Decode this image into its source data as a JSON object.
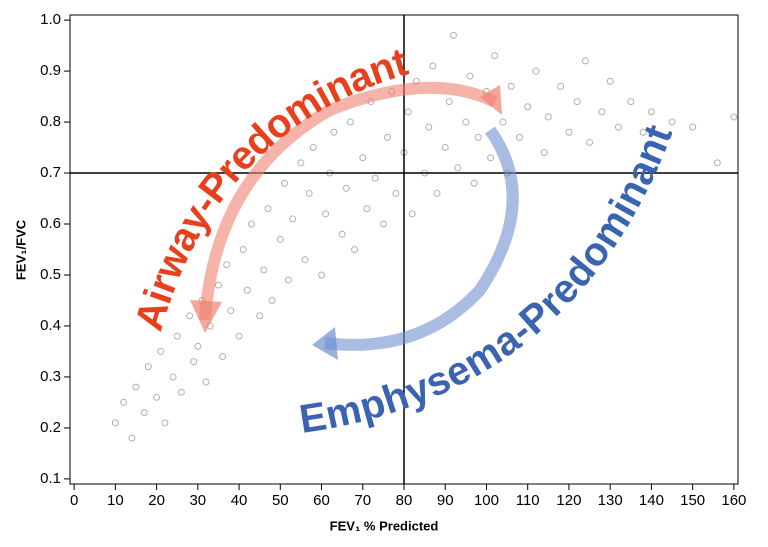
{
  "chart_data": {
    "type": "scatter",
    "xlabel": "FEV₁ % Predicted",
    "ylabel": "FEV₁/FVC",
    "color": "#b0b0b0",
    "xlim": [
      -1,
      161
    ],
    "ylim": [
      0.09,
      1.01
    ],
    "xticks": [
      0,
      10,
      20,
      30,
      40,
      50,
      60,
      70,
      80,
      90,
      100,
      110,
      120,
      130,
      140,
      150,
      160
    ],
    "yticks": [
      0.1,
      0.2,
      0.3,
      0.4,
      0.5,
      0.6,
      0.7,
      0.8,
      0.9,
      {
        "value": 1,
        "label": "1.0"
      }
    ],
    "vline": 80,
    "hline": 0.7,
    "annotations": [
      {
        "text": "Airway-Predominant",
        "color": "#e8401c"
      },
      {
        "text": "Emphysema-Predominant",
        "color": "#3a63b0"
      }
    ],
    "x": [
      10,
      12,
      14,
      15,
      17,
      18,
      20,
      21,
      22,
      24,
      25,
      26,
      28,
      29,
      30,
      31,
      32,
      33,
      35,
      36,
      37,
      38,
      40,
      41,
      42,
      43,
      45,
      46,
      47,
      48,
      50,
      51,
      52,
      53,
      55,
      56,
      57,
      58,
      60,
      61,
      62,
      63,
      65,
      66,
      67,
      68,
      70,
      71,
      72,
      73,
      75,
      76,
      77,
      78,
      80,
      81,
      82,
      83,
      85,
      86,
      87,
      88,
      90,
      91,
      92,
      93,
      95,
      96,
      97,
      98,
      100,
      101,
      102,
      104,
      105,
      106,
      108,
      110,
      112,
      114,
      115,
      118,
      120,
      122,
      124,
      125,
      128,
      130,
      132,
      135,
      138,
      140,
      145,
      150,
      156,
      160
    ],
    "y": [
      0.21,
      0.25,
      0.18,
      0.28,
      0.23,
      0.32,
      0.26,
      0.35,
      0.21,
      0.3,
      0.38,
      0.27,
      0.42,
      0.33,
      0.36,
      0.45,
      0.29,
      0.4,
      0.48,
      0.34,
      0.52,
      0.43,
      0.38,
      0.55,
      0.47,
      0.6,
      0.42,
      0.51,
      0.63,
      0.45,
      0.57,
      0.68,
      0.49,
      0.61,
      0.72,
      0.53,
      0.66,
      0.75,
      0.5,
      0.62,
      0.7,
      0.78,
      0.58,
      0.67,
      0.8,
      0.55,
      0.73,
      0.63,
      0.84,
      0.69,
      0.6,
      0.77,
      0.86,
      0.66,
      0.74,
      0.82,
      0.62,
      0.88,
      0.7,
      0.79,
      0.91,
      0.66,
      0.75,
      0.84,
      0.97,
      0.71,
      0.8,
      0.89,
      0.68,
      0.77,
      0.86,
      0.73,
      0.93,
      0.8,
      0.7,
      0.87,
      0.77,
      0.83,
      0.9,
      0.74,
      0.81,
      0.87,
      0.78,
      0.84,
      0.92,
      0.76,
      0.82,
      0.88,
      0.79,
      0.84,
      0.78,
      0.82,
      0.8,
      0.79,
      0.72,
      0.81
    ]
  }
}
